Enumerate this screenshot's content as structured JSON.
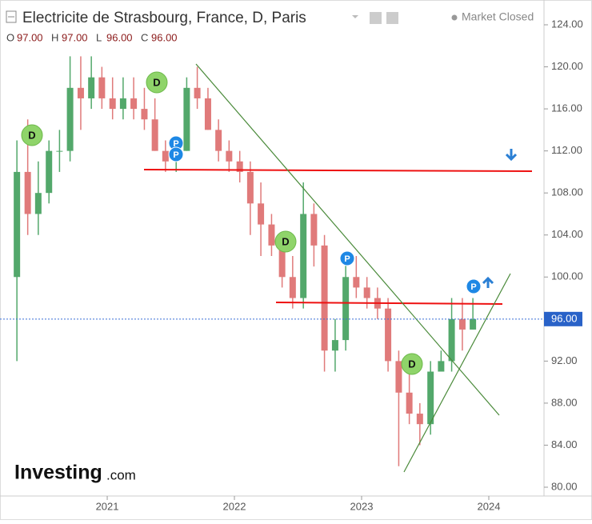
{
  "chart_data": {
    "type": "candlestick",
    "title": "Electricite de Strasbourg, France, D, Paris",
    "status": "Market Closed",
    "ohlc_letters": [
      "O",
      "H",
      "L",
      "C"
    ],
    "ohlc": [
      97,
      97,
      96,
      96
    ],
    "ohlc_labels": [
      "97.00",
      "97.00",
      "96.00",
      "96.00"
    ],
    "last_price": 96,
    "last_price_label": "96.00",
    "marker_labels": [
      "D",
      "P"
    ],
    "logo": [
      "Investing",
      ".com"
    ],
    "up_color": "#53a86b",
    "down_color": "#e07a7a",
    "xlim": [
      2020.157,
      2024.434
    ],
    "xticks": [
      2021,
      2022,
      2023,
      2024
    ],
    "ylim": [
      80,
      124
    ],
    "yticks": [
      {
        "value": 80,
        "label": "80.00"
      },
      {
        "value": 84,
        "label": "84.00"
      },
      {
        "value": 88,
        "label": "88.00"
      },
      {
        "value": 92,
        "label": "92.00"
      },
      {
        "value": 96,
        "label": "96.00"
      },
      {
        "value": 100,
        "label": "100.00"
      },
      {
        "value": 104,
        "label": "104.00"
      },
      {
        "value": 108,
        "label": "108.00"
      },
      {
        "value": 112,
        "label": "112.00"
      },
      {
        "value": 116,
        "label": "116.00"
      },
      {
        "value": 120,
        "label": "120.00"
      },
      {
        "value": 124,
        "label": "124.00"
      }
    ],
    "x": [
      2020.29,
      2020.375,
      2020.458,
      2020.542,
      2020.625,
      2020.708,
      2020.792,
      2020.875,
      2020.958,
      2021.042,
      2021.125,
      2021.208,
      2021.292,
      2021.375,
      2021.458,
      2021.542,
      2021.625,
      2021.708,
      2021.792,
      2021.875,
      2021.958,
      2022.042,
      2022.125,
      2022.208,
      2022.292,
      2022.375,
      2022.458,
      2022.542,
      2022.625,
      2022.708,
      2022.792,
      2022.875,
      2022.958,
      2023.042,
      2023.125,
      2023.208,
      2023.292,
      2023.375,
      2023.458,
      2023.542,
      2023.625,
      2023.708,
      2023.792,
      2023.875
    ],
    "open": [
      100,
      110,
      106,
      108,
      112,
      112,
      118,
      117,
      119,
      117,
      116,
      117,
      116,
      115,
      112,
      111,
      112,
      118,
      117,
      114,
      112,
      111,
      110,
      107,
      105,
      103,
      100,
      98,
      106,
      103,
      93,
      94,
      100,
      99,
      98,
      97,
      92,
      89,
      87,
      86,
      91,
      92,
      96,
      95
    ],
    "high": [
      113,
      115,
      111,
      113,
      114,
      121,
      121,
      121,
      120,
      119,
      119,
      119,
      118,
      117,
      113,
      113,
      119,
      120,
      118,
      115,
      113,
      112,
      111,
      109,
      106,
      104,
      102,
      109,
      107,
      104,
      96,
      102,
      102,
      100,
      99,
      98,
      93,
      91,
      88,
      92,
      93,
      98,
      98,
      98
    ],
    "low": [
      92,
      104,
      104,
      107,
      110,
      111,
      114,
      116,
      116,
      115,
      115,
      115,
      114,
      112,
      110,
      110,
      112,
      116,
      114,
      111,
      110,
      109,
      104,
      102,
      102,
      99,
      97,
      97,
      101,
      91,
      91,
      93,
      98,
      97,
      96,
      91,
      82,
      86,
      84,
      85,
      91,
      91,
      93,
      95
    ],
    "close": [
      110,
      106,
      108,
      112,
      112,
      118,
      117,
      119,
      117,
      116,
      117,
      116,
      115,
      112,
      111,
      112,
      118,
      117,
      114,
      112,
      111,
      110,
      107,
      105,
      103,
      100,
      98,
      106,
      103,
      93,
      94,
      100,
      99,
      98,
      97,
      92,
      89,
      87,
      86,
      91,
      92,
      96,
      95,
      96
    ]
  }
}
